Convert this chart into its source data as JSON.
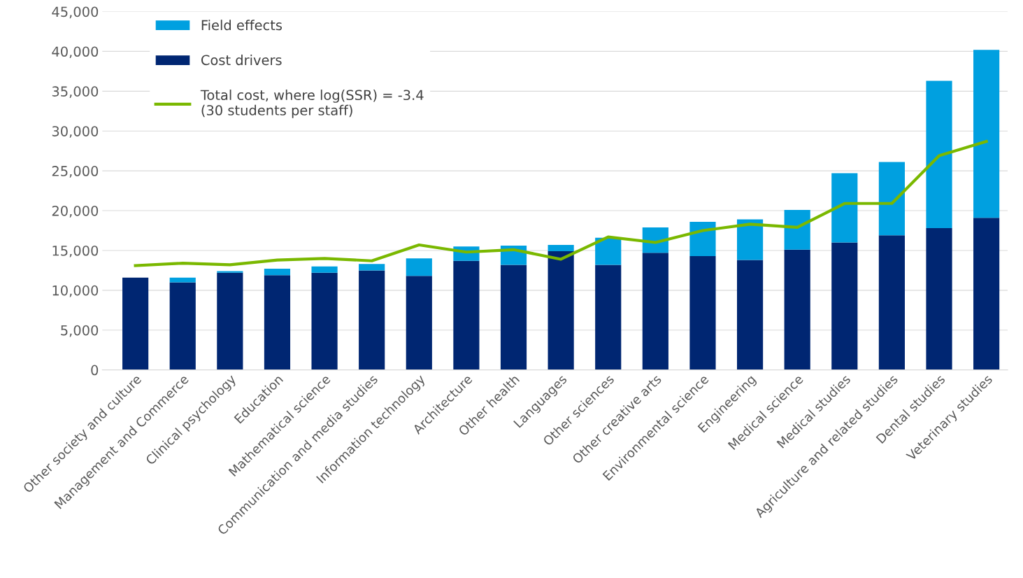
{
  "chart_data": {
    "type": "bar",
    "stacked": true,
    "categories": [
      "Other society and culture",
      "Management and Commerce",
      "Clinical psychology",
      "Education",
      "Mathematical science",
      "Communication and media studies",
      "Information technology",
      "Architecture",
      "Other health",
      "Languages",
      "Other sciences",
      "Other creative arts",
      "Environmental science",
      "Engineering",
      "Medical science",
      "Medical studies",
      "Agriculture and related studies",
      "Dental studies",
      "Veterinary studies"
    ],
    "series": [
      {
        "name": "Cost drivers",
        "color": "#002672",
        "values": [
          11600,
          11000,
          12200,
          11900,
          12200,
          12500,
          11800,
          13700,
          13200,
          14900,
          13200,
          14700,
          14300,
          13800,
          15100,
          16000,
          16900,
          17800,
          19100
        ]
      },
      {
        "name": "Field effects",
        "color": "#00a0e0",
        "values": [
          0,
          600,
          200,
          800,
          800,
          800,
          2200,
          1800,
          2400,
          800,
          3400,
          3200,
          4300,
          5100,
          5000,
          8700,
          9200,
          18500,
          21100
        ]
      },
      {
        "name": "Total cost, where log(SSR) = -3.4\n(30 students per staff)",
        "type": "line",
        "color": "#7ab800",
        "values": [
          13100,
          13400,
          13200,
          13800,
          14000,
          13700,
          15700,
          14800,
          15100,
          13900,
          16700,
          16000,
          17500,
          18300,
          17900,
          20900,
          20900,
          26900,
          28700
        ]
      }
    ],
    "ylim": [
      0,
      45000
    ],
    "yticks": [
      {
        "value": 0,
        "label": "0"
      },
      {
        "value": 5000,
        "label": "5,000"
      },
      {
        "value": 10000,
        "label": "10,000"
      },
      {
        "value": 15000,
        "label": "15,000"
      },
      {
        "value": 20000,
        "label": "20,000"
      },
      {
        "value": 25000,
        "label": "25,000"
      },
      {
        "value": 30000,
        "label": "30,000"
      },
      {
        "value": 35000,
        "label": "35,000"
      },
      {
        "value": 40000,
        "label": "40,000"
      },
      {
        "value": 45000,
        "label": "45,000"
      }
    ],
    "grid": "y",
    "legend": "top left",
    "marker": "none",
    "line_style": "solid"
  }
}
